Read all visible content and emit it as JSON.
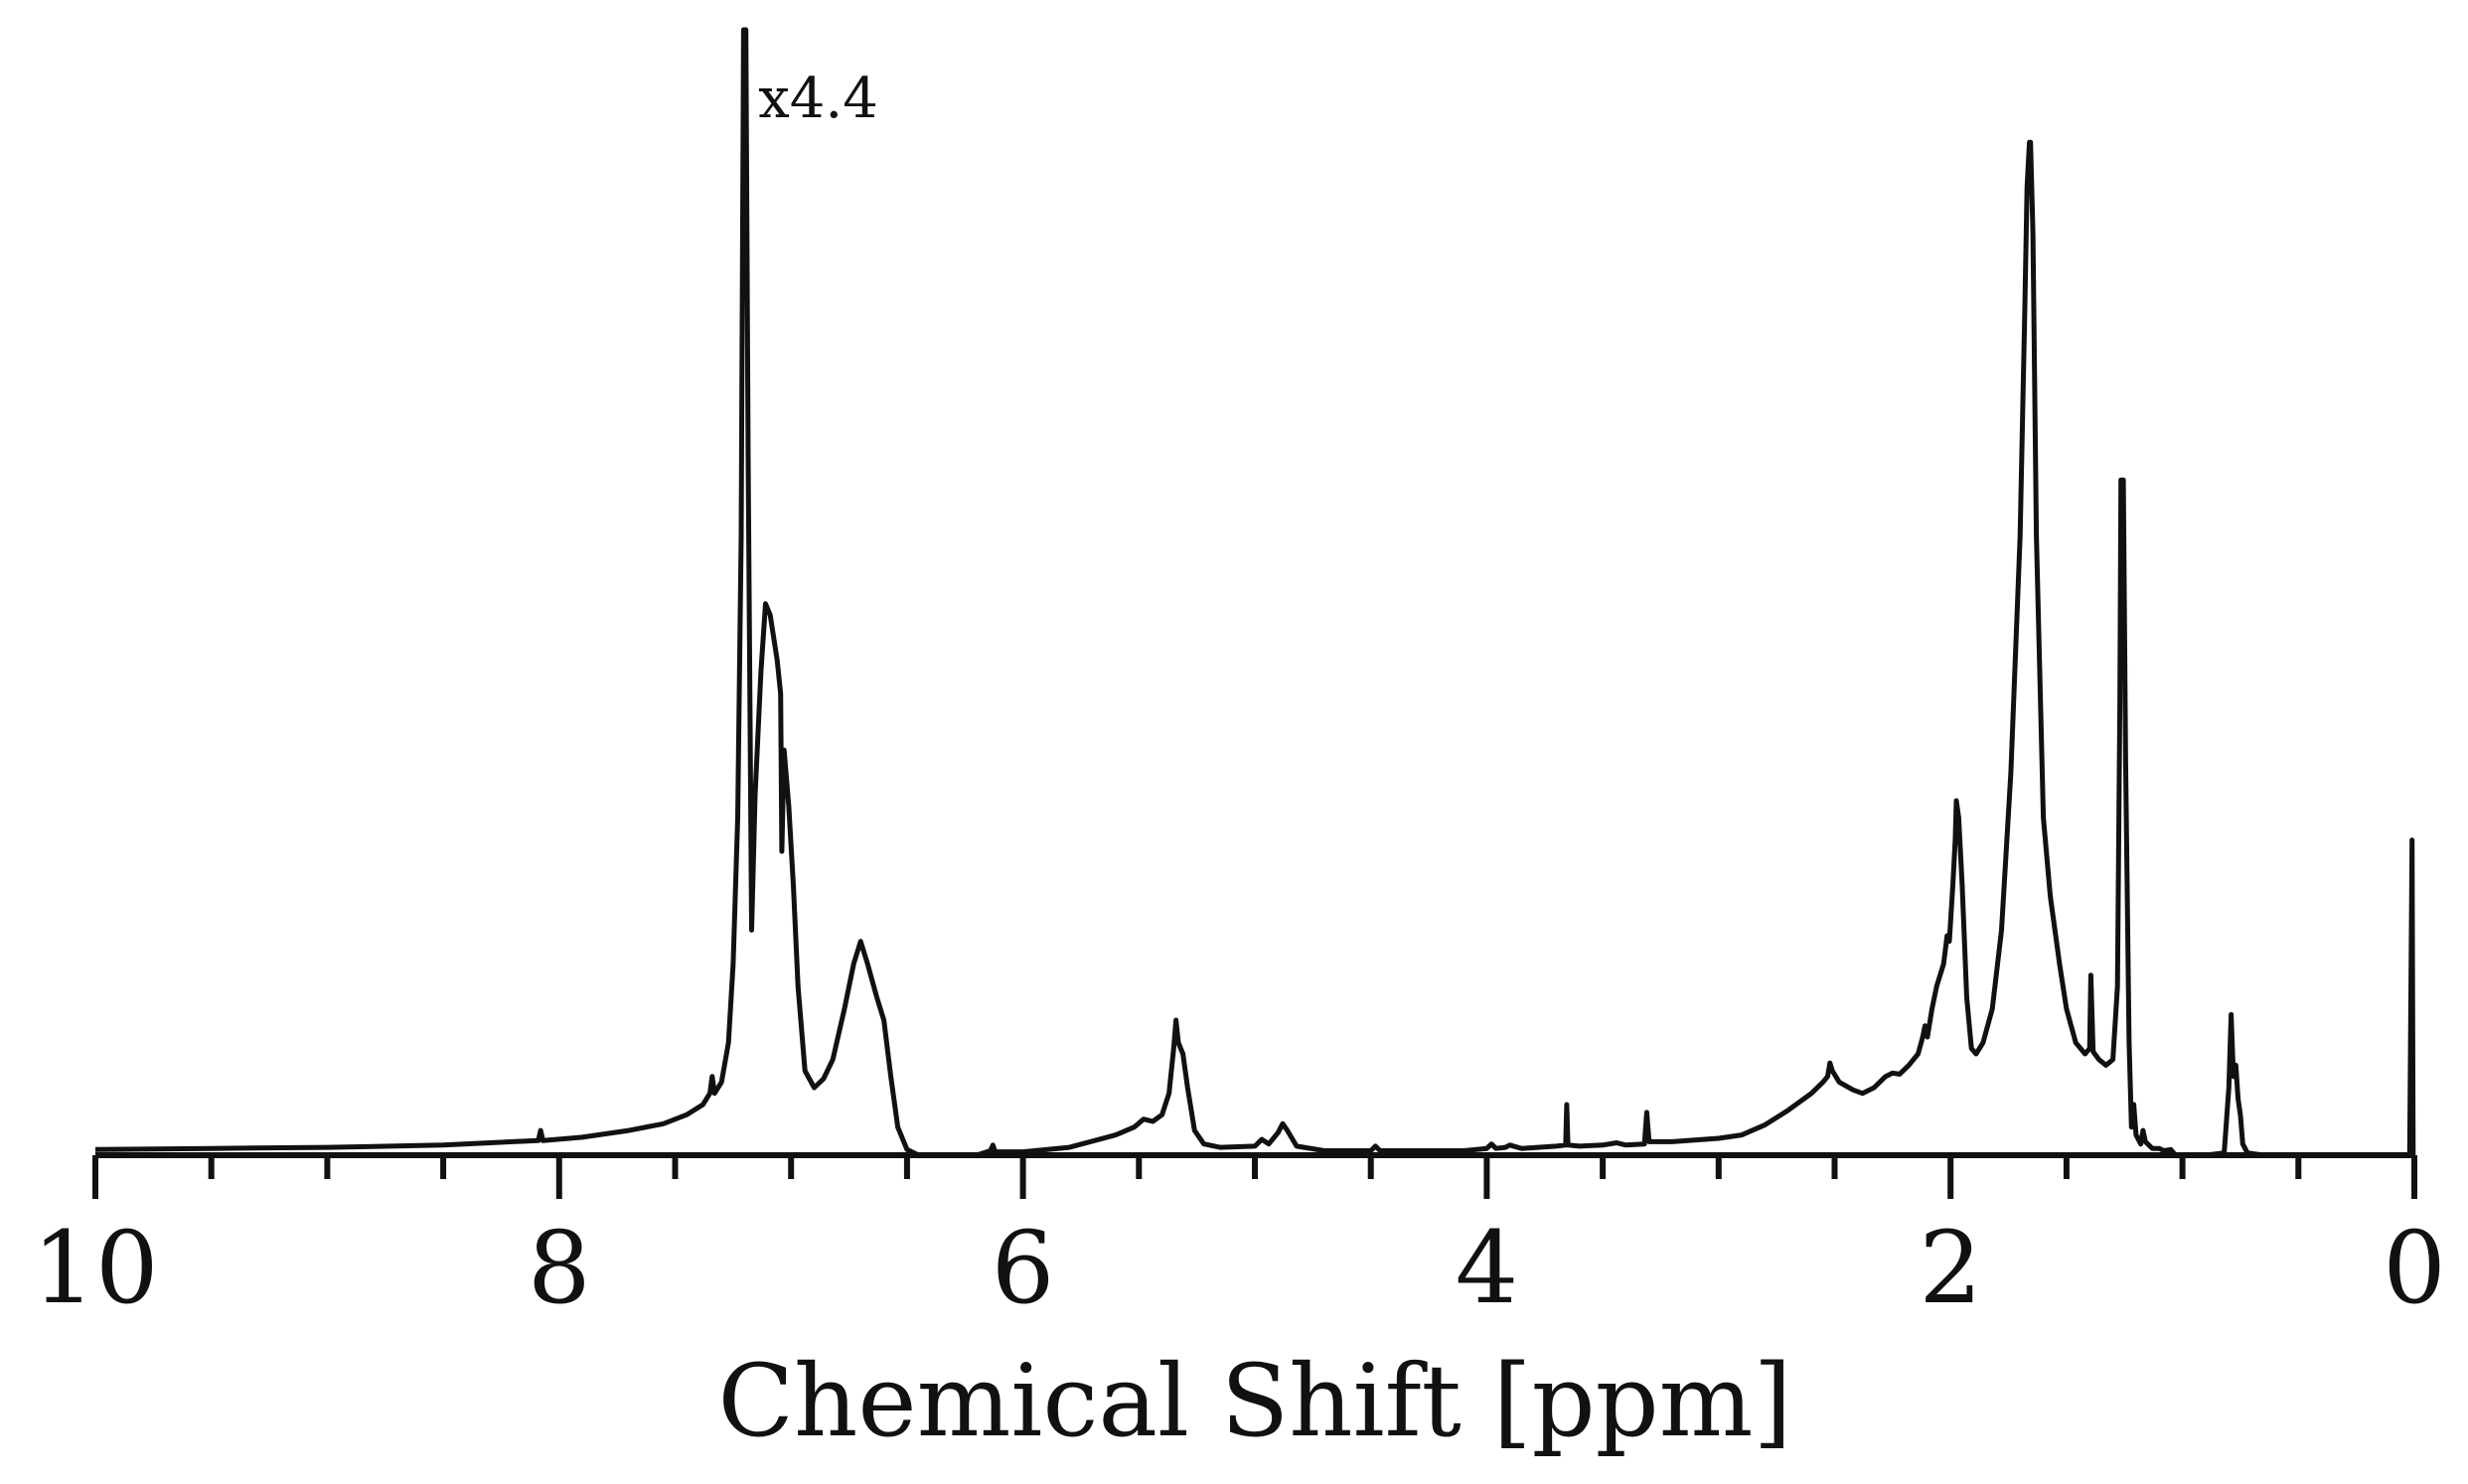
{
  "chart_data": {
    "type": "line",
    "title": "",
    "xlabel": "Chemical Shift [ppm]",
    "ylabel": "",
    "xlim": [
      10,
      0
    ],
    "ylim": [
      0,
      1.0
    ],
    "x_reversed": true,
    "grid": false,
    "legend": "none",
    "xticks_major": [
      10,
      8,
      6,
      4,
      2,
      0
    ],
    "xtick_labels": [
      "10",
      "8",
      "6",
      "4",
      "2",
      "0"
    ],
    "xticks_minor_step": 0.5,
    "annotations": [
      {
        "text": "x4.4",
        "x": 7.15,
        "y": 0.94
      }
    ],
    "color": "#111111",
    "series": [
      {
        "values_note": "",
        "points": [
          [
            10.0,
            0.005
          ],
          [
            9.5,
            0.006
          ],
          [
            9.0,
            0.007
          ],
          [
            8.5,
            0.009
          ],
          [
            8.2,
            0.012
          ],
          [
            8.09,
            0.013
          ],
          [
            8.08,
            0.022
          ],
          [
            8.07,
            0.013
          ],
          [
            7.9,
            0.016
          ],
          [
            7.7,
            0.022
          ],
          [
            7.55,
            0.028
          ],
          [
            7.45,
            0.036
          ],
          [
            7.38,
            0.045
          ],
          [
            7.35,
            0.055
          ],
          [
            7.34,
            0.07
          ],
          [
            7.33,
            0.055
          ],
          [
            7.3,
            0.065
          ],
          [
            7.27,
            0.1
          ],
          [
            7.25,
            0.17
          ],
          [
            7.23,
            0.3
          ],
          [
            7.215,
            0.55
          ],
          [
            7.205,
            1.0
          ],
          [
            7.195,
            1.0
          ],
          [
            7.185,
            0.62
          ],
          [
            7.17,
            0.2
          ],
          [
            7.155,
            0.32
          ],
          [
            7.13,
            0.43
          ],
          [
            7.11,
            0.49
          ],
          [
            7.09,
            0.48
          ],
          [
            7.06,
            0.44
          ],
          [
            7.045,
            0.41
          ],
          [
            7.04,
            0.27
          ],
          [
            7.03,
            0.36
          ],
          [
            7.01,
            0.31
          ],
          [
            6.99,
            0.24
          ],
          [
            6.97,
            0.15
          ],
          [
            6.94,
            0.075
          ],
          [
            6.9,
            0.06
          ],
          [
            6.86,
            0.068
          ],
          [
            6.82,
            0.085
          ],
          [
            6.77,
            0.13
          ],
          [
            6.73,
            0.17
          ],
          [
            6.7,
            0.19
          ],
          [
            6.67,
            0.17
          ],
          [
            6.63,
            0.14
          ],
          [
            6.6,
            0.12
          ],
          [
            6.57,
            0.07
          ],
          [
            6.54,
            0.025
          ],
          [
            6.5,
            0.005
          ],
          [
            6.45,
            0.0
          ],
          [
            6.2,
            0.0
          ],
          [
            6.14,
            0.004
          ],
          [
            6.13,
            0.009
          ],
          [
            6.12,
            0.003
          ],
          [
            6.0,
            0.003
          ],
          [
            5.8,
            0.007
          ],
          [
            5.6,
            0.018
          ],
          [
            5.52,
            0.025
          ],
          [
            5.48,
            0.032
          ],
          [
            5.44,
            0.03
          ],
          [
            5.4,
            0.036
          ],
          [
            5.37,
            0.055
          ],
          [
            5.35,
            0.095
          ],
          [
            5.34,
            0.12
          ],
          [
            5.33,
            0.1
          ],
          [
            5.31,
            0.09
          ],
          [
            5.29,
            0.06
          ],
          [
            5.26,
            0.022
          ],
          [
            5.22,
            0.01
          ],
          [
            5.15,
            0.007
          ],
          [
            5.0,
            0.008
          ],
          [
            4.97,
            0.014
          ],
          [
            4.94,
            0.01
          ],
          [
            4.9,
            0.02
          ],
          [
            4.88,
            0.028
          ],
          [
            4.86,
            0.022
          ],
          [
            4.82,
            0.008
          ],
          [
            4.7,
            0.004
          ],
          [
            4.5,
            0.004
          ],
          [
            4.48,
            0.008
          ],
          [
            4.46,
            0.004
          ],
          [
            4.1,
            0.004
          ],
          [
            4.0,
            0.006
          ],
          [
            3.98,
            0.01
          ],
          [
            3.96,
            0.006
          ],
          [
            3.92,
            0.007
          ],
          [
            3.9,
            0.009
          ],
          [
            3.85,
            0.006
          ],
          [
            3.7,
            0.008
          ],
          [
            3.66,
            0.009
          ],
          [
            3.655,
            0.045
          ],
          [
            3.65,
            0.009
          ],
          [
            3.6,
            0.008
          ],
          [
            3.5,
            0.009
          ],
          [
            3.44,
            0.011
          ],
          [
            3.4,
            0.009
          ],
          [
            3.32,
            0.01
          ],
          [
            3.31,
            0.038
          ],
          [
            3.3,
            0.012
          ],
          [
            3.2,
            0.012
          ],
          [
            3.0,
            0.015
          ],
          [
            2.9,
            0.018
          ],
          [
            2.8,
            0.027
          ],
          [
            2.7,
            0.04
          ],
          [
            2.6,
            0.055
          ],
          [
            2.55,
            0.065
          ],
          [
            2.53,
            0.07
          ],
          [
            2.52,
            0.082
          ],
          [
            2.51,
            0.075
          ],
          [
            2.48,
            0.065
          ],
          [
            2.42,
            0.058
          ],
          [
            2.38,
            0.055
          ],
          [
            2.33,
            0.06
          ],
          [
            2.28,
            0.07
          ],
          [
            2.25,
            0.073
          ],
          [
            2.22,
            0.072
          ],
          [
            2.18,
            0.08
          ],
          [
            2.14,
            0.09
          ],
          [
            2.12,
            0.105
          ],
          [
            2.11,
            0.115
          ],
          [
            2.1,
            0.105
          ],
          [
            2.08,
            0.13
          ],
          [
            2.06,
            0.15
          ],
          [
            2.03,
            0.17
          ],
          [
            2.015,
            0.195
          ],
          [
            2.005,
            0.19
          ],
          [
            1.99,
            0.24
          ],
          [
            1.98,
            0.28
          ],
          [
            1.975,
            0.315
          ],
          [
            1.965,
            0.3
          ],
          [
            1.95,
            0.24
          ],
          [
            1.93,
            0.14
          ],
          [
            1.91,
            0.095
          ],
          [
            1.89,
            0.09
          ],
          [
            1.86,
            0.1
          ],
          [
            1.82,
            0.13
          ],
          [
            1.78,
            0.2
          ],
          [
            1.74,
            0.34
          ],
          [
            1.7,
            0.55
          ],
          [
            1.68,
            0.75
          ],
          [
            1.67,
            0.86
          ],
          [
            1.66,
            0.9
          ],
          [
            1.655,
            0.9
          ],
          [
            1.645,
            0.82
          ],
          [
            1.63,
            0.55
          ],
          [
            1.6,
            0.3
          ],
          [
            1.57,
            0.23
          ],
          [
            1.53,
            0.17
          ],
          [
            1.5,
            0.13
          ],
          [
            1.46,
            0.1
          ],
          [
            1.42,
            0.09
          ],
          [
            1.4,
            0.095
          ],
          [
            1.395,
            0.16
          ],
          [
            1.385,
            0.092
          ],
          [
            1.36,
            0.085
          ],
          [
            1.33,
            0.08
          ],
          [
            1.3,
            0.085
          ],
          [
            1.28,
            0.15
          ],
          [
            1.27,
            0.4
          ],
          [
            1.265,
            0.6
          ],
          [
            1.255,
            0.6
          ],
          [
            1.245,
            0.35
          ],
          [
            1.23,
            0.1
          ],
          [
            1.22,
            0.025
          ],
          [
            1.21,
            0.045
          ],
          [
            1.2,
            0.018
          ],
          [
            1.18,
            0.01
          ],
          [
            1.17,
            0.022
          ],
          [
            1.16,
            0.012
          ],
          [
            1.13,
            0.006
          ],
          [
            1.1,
            0.006
          ],
          [
            1.08,
            0.004
          ],
          [
            1.05,
            0.005
          ],
          [
            1.03,
            0.0
          ],
          [
            0.9,
            0.0
          ],
          [
            0.82,
            0.002
          ],
          [
            0.8,
            0.06
          ],
          [
            0.79,
            0.125
          ],
          [
            0.78,
            0.07
          ],
          [
            0.77,
            0.08
          ],
          [
            0.76,
            0.05
          ],
          [
            0.75,
            0.035
          ],
          [
            0.74,
            0.01
          ],
          [
            0.72,
            0.002
          ],
          [
            0.65,
            0.0
          ],
          [
            0.3,
            0.0
          ],
          [
            0.05,
            0.0
          ],
          [
            0.02,
            0.0
          ],
          [
            0.01,
            0.28
          ],
          [
            0.005,
            0.0
          ],
          [
            0.0,
            0.0
          ]
        ]
      }
    ]
  }
}
